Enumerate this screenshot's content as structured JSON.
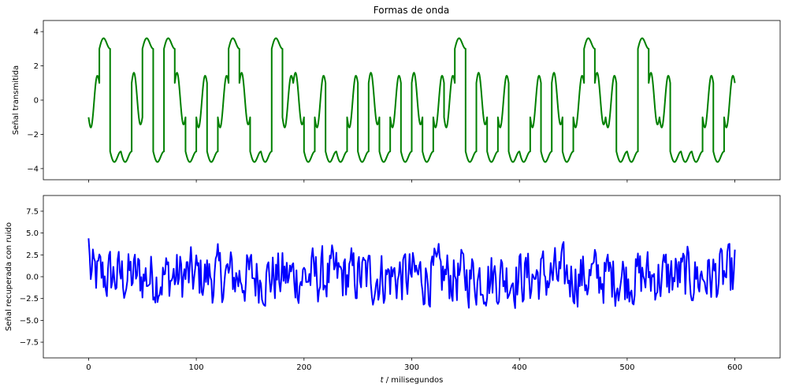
{
  "chart_data": [
    {
      "type": "line",
      "title": "Formas de onda",
      "ylabel": "Señal transmitida",
      "xlabel": "",
      "xlim": [
        -42,
        642
      ],
      "ylim": [
        -4.65,
        4.65
      ],
      "xticks": [
        0,
        100,
        200,
        300,
        400,
        500,
        600
      ],
      "yticks": [
        -4,
        -2,
        0,
        2,
        4
      ],
      "ytick_labels": [
        "−4",
        "−2",
        "0",
        "2",
        "4"
      ],
      "xtick_labels_visible": false,
      "grid": false,
      "series": [
        {
          "color": "#008000",
          "symbols": [
            3,
            0,
            1,
            1,
            2,
            0,
            1,
            0,
            2,
            1,
            3,
            1,
            3,
            0,
            2,
            1,
            1,
            0,
            3,
            2,
            1,
            3,
            1,
            1,
            3,
            1,
            2,
            1,
            3,
            1,
            2,
            1,
            3,
            3,
            0,
            1,
            2,
            1,
            3,
            1,
            1,
            3,
            1,
            2,
            1,
            3,
            0,
            2,
            3,
            1,
            1,
            0,
            2,
            3,
            1,
            1,
            1,
            3,
            1,
            3
          ],
          "symbol_ms": 10,
          "symbol_shapes": [
            [
              3.0,
              4.0,
              4.0,
              3.0
            ],
            [
              -3.0,
              -4.0,
              -4.0,
              -3.0
            ],
            [
              1.0,
              1.3,
              -1.3,
              -1.0
            ],
            [
              -1.0,
              -1.3,
              1.3,
              1.0
            ]
          ]
        }
      ]
    },
    {
      "type": "line",
      "title": "",
      "ylabel": "Señal recuperada con ruido",
      "xlabel": "t / milisegundos",
      "xlim": [
        -42,
        642
      ],
      "ylim": [
        -9.3,
        9.3
      ],
      "xticks": [
        0,
        100,
        200,
        300,
        400,
        500,
        600
      ],
      "xtick_labels": [
        "0",
        "100",
        "200",
        "300",
        "400",
        "500",
        "600"
      ],
      "yticks": [
        -7.5,
        -5.0,
        -2.5,
        0.0,
        2.5,
        5.0,
        7.5
      ],
      "ytick_labels": [
        "−7.5",
        "−5.0",
        "−2.5",
        "0.0",
        "2.5",
        "5.0",
        "7.5"
      ],
      "grid": false,
      "series": [
        {
          "color": "#0000ff",
          "start": [
            0,
            4.4
          ],
          "end": [
            600,
            3.1
          ],
          "noise_amplitude": 3.2
        }
      ]
    }
  ]
}
